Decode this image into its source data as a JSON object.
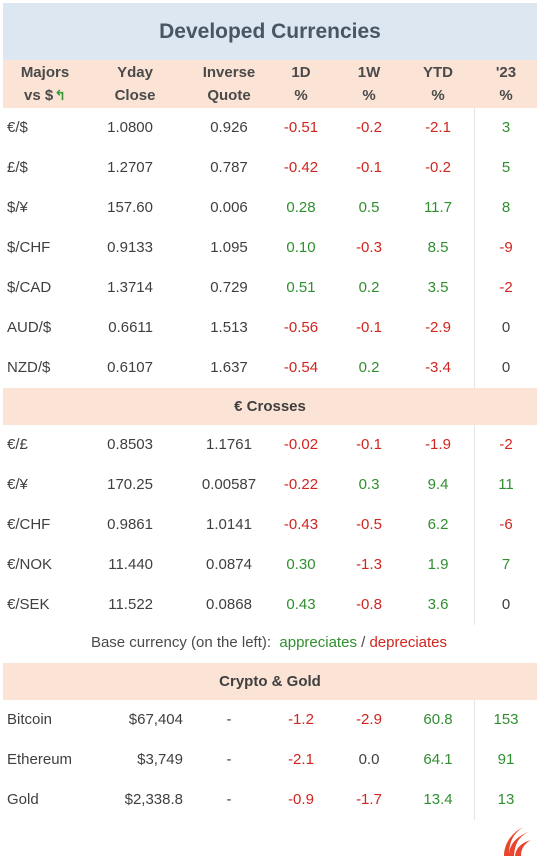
{
  "title": "Developed Currencies",
  "headers": {
    "majors_l1": "Majors",
    "majors_l2": "vs $",
    "close_l1": "Yday",
    "close_l2": "Close",
    "inverse_l1": "Inverse",
    "inverse_l2": "Quote",
    "d1_l1": "1D",
    "d1_l2": "%",
    "w1_l1": "1W",
    "w1_l2": "%",
    "ytd_l1": "YTD",
    "ytd_l2": "%",
    "y23_l1": "'23",
    "y23_l2": "%"
  },
  "icons": {
    "majors_arrow": "curved-arrow-up-left-icon",
    "logo": "brand-flame-logo"
  },
  "colors": {
    "positive": "#2f8f2f",
    "negative": "#d0251f",
    "header_bg": "#fbe4d6",
    "title_bg": "#dde7f1"
  },
  "majors": [
    {
      "pair": "€/$",
      "close": "1.0800",
      "inverse": "0.926",
      "d1": "-0.51",
      "w1": "-0.2",
      "ytd": "-2.1",
      "y23": "3"
    },
    {
      "pair": "£/$",
      "close": "1.2707",
      "inverse": "0.787",
      "d1": "-0.42",
      "w1": "-0.1",
      "ytd": "-0.2",
      "y23": "5"
    },
    {
      "pair": "$/¥",
      "close": "157.60",
      "inverse": "0.006",
      "d1": "0.28",
      "w1": "0.5",
      "ytd": "11.7",
      "y23": "8"
    },
    {
      "pair": "$/CHF",
      "close": "0.9133",
      "inverse": "1.095",
      "d1": "0.10",
      "w1": "-0.3",
      "ytd": "8.5",
      "y23": "-9"
    },
    {
      "pair": "$/CAD",
      "close": "1.3714",
      "inverse": "0.729",
      "d1": "0.51",
      "w1": "0.2",
      "ytd": "3.5",
      "y23": "-2"
    },
    {
      "pair": "AUD/$",
      "close": "0.6611",
      "inverse": "1.513",
      "d1": "-0.56",
      "w1": "-0.1",
      "ytd": "-2.9",
      "y23": "0"
    },
    {
      "pair": "NZD/$",
      "close": "0.6107",
      "inverse": "1.637",
      "d1": "-0.54",
      "w1": "0.2",
      "ytd": "-3.4",
      "y23": "0"
    }
  ],
  "crosses_title": "€ Crosses",
  "crosses": [
    {
      "pair": "€/£",
      "close": "0.8503",
      "inverse": "1.1761",
      "d1": "-0.02",
      "w1": "-0.1",
      "ytd": "-1.9",
      "y23": "-2"
    },
    {
      "pair": "€/¥",
      "close": "170.25",
      "inverse": "0.00587",
      "d1": "-0.22",
      "w1": "0.3",
      "ytd": "9.4",
      "y23": "11"
    },
    {
      "pair": "€/CHF",
      "close": "0.9861",
      "inverse": "1.0141",
      "d1": "-0.43",
      "w1": "-0.5",
      "ytd": "6.2",
      "y23": "-6"
    },
    {
      "pair": "€/NOK",
      "close": "11.440",
      "inverse": "0.0874",
      "d1": "0.30",
      "w1": "-1.3",
      "ytd": "1.9",
      "y23": "7"
    },
    {
      "pair": "€/SEK",
      "close": "11.522",
      "inverse": "0.0868",
      "d1": "0.43",
      "w1": "-0.8",
      "ytd": "3.6",
      "y23": "0"
    }
  ],
  "legend": {
    "prefix": "Base currency (on the left):",
    "up": "appreciates",
    "sep": "/",
    "down": "depreciates"
  },
  "crypto_title": "Crypto & Gold",
  "crypto": [
    {
      "name": "Bitcoin",
      "close": "$67,404",
      "inverse": "-",
      "d1": "-1.2",
      "w1": "-2.9",
      "ytd": "60.8",
      "y23": "153"
    },
    {
      "name": "Ethereum",
      "close": "$3,749",
      "inverse": "-",
      "d1": "-2.1",
      "w1": "0.0",
      "ytd": "64.1",
      "y23": "91"
    },
    {
      "name": "Gold",
      "close": "$2,338.8",
      "inverse": "-",
      "d1": "-0.9",
      "w1": "-1.7",
      "ytd": "13.4",
      "y23": "13"
    }
  ]
}
